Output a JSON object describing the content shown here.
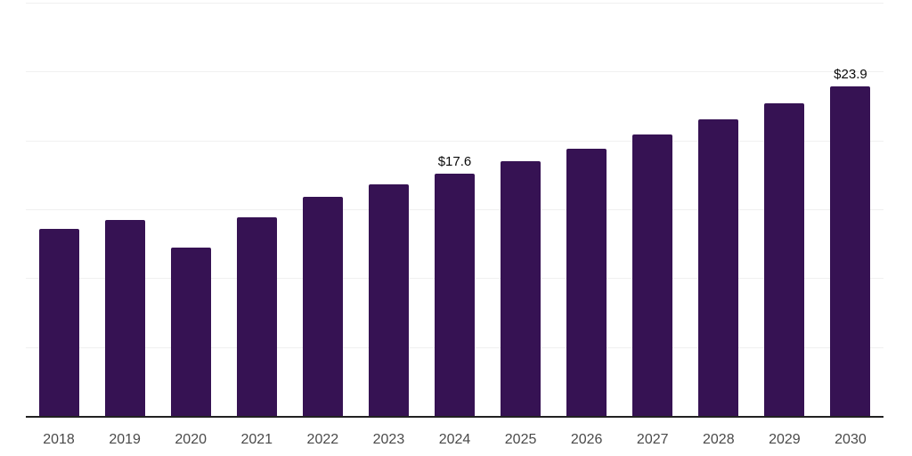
{
  "chart_data": {
    "type": "bar",
    "title": "",
    "xlabel": "",
    "ylabel": "",
    "categories": [
      "2018",
      "2019",
      "2020",
      "2021",
      "2022",
      "2023",
      "2024",
      "2025",
      "2026",
      "2027",
      "2028",
      "2029",
      "2030"
    ],
    "values": [
      13.6,
      14.2,
      12.2,
      14.4,
      15.9,
      16.8,
      17.6,
      18.5,
      19.4,
      20.4,
      21.5,
      22.7,
      23.9
    ],
    "bar_labels": [
      "",
      "",
      "",
      "",
      "",
      "",
      "$17.6",
      "",
      "",
      "",
      "",
      "",
      "$23.9"
    ],
    "ylim": [
      0,
      30
    ],
    "gridline_step": 5,
    "grid": "horizontal",
    "legend": "none",
    "colors": {
      "bar": "#361253",
      "axis_line": "#222222",
      "gridline": "#f0f0f0",
      "tick_label": "#4a4a4a",
      "data_label": "#0a0a0a",
      "background": "#ffffff"
    }
  }
}
